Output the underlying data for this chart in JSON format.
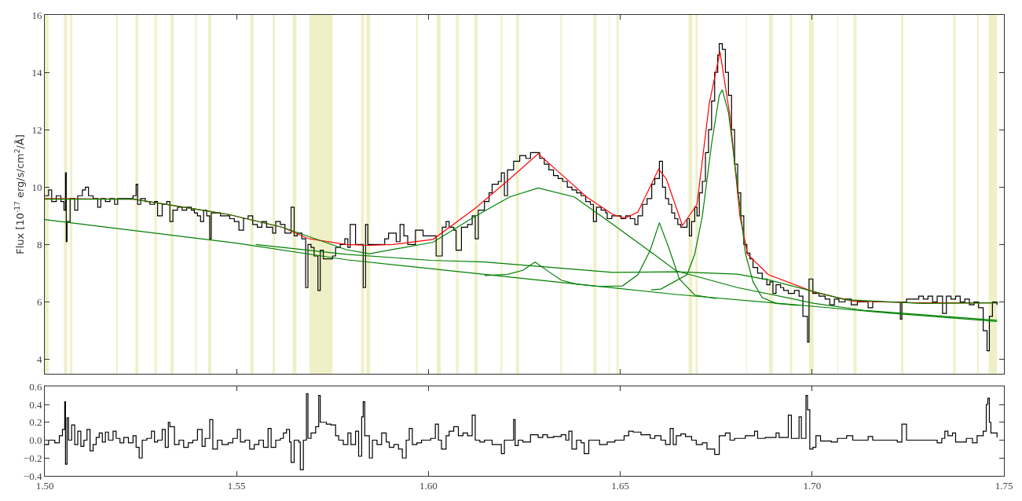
{
  "chart_data": [
    {
      "type": "line",
      "ylabel": "Flux [10$^{-17}$ erg/s/cm$^{2}$/Å]",
      "xlim": [
        1.5,
        1.75
      ],
      "xticks": [
        1.5,
        1.55,
        1.6,
        1.65,
        1.7,
        1.75
      ],
      "ylim": [
        3.5,
        16
      ],
      "yticks": [
        4,
        6,
        8,
        10,
        12,
        14,
        16
      ],
      "tick_labels": "y",
      "bands": [
        {
          "axis": "x",
          "from": 1.5,
          "to": 1.501,
          "color": "#f0f0c8"
        },
        {
          "axis": "x",
          "from": 1.505,
          "to": 1.5058,
          "color": "#f0f0c8"
        },
        {
          "axis": "x",
          "from": 1.5066,
          "to": 1.5072,
          "color": "#f0f0c8"
        },
        {
          "axis": "x",
          "from": 1.5186,
          "to": 1.519,
          "color": "#f0f0c8"
        },
        {
          "axis": "x",
          "from": 1.5236,
          "to": 1.5244,
          "color": "#f0f0c8"
        },
        {
          "axis": "x",
          "from": 1.5286,
          "to": 1.5292,
          "color": "#f0f0c8"
        },
        {
          "axis": "x",
          "from": 1.5328,
          "to": 1.5336,
          "color": "#f0f0c8"
        },
        {
          "axis": "x",
          "from": 1.5392,
          "to": 1.5396,
          "color": "#f0f0c8"
        },
        {
          "axis": "x",
          "from": 1.5426,
          "to": 1.5434,
          "color": "#f0f0c8"
        },
        {
          "axis": "x",
          "from": 1.5536,
          "to": 1.5544,
          "color": "#f0f0c8"
        },
        {
          "axis": "x",
          "from": 1.5594,
          "to": 1.56,
          "color": "#f0f0c8"
        },
        {
          "axis": "x",
          "from": 1.5646,
          "to": 1.5656,
          "color": "#f0f0c8"
        },
        {
          "axis": "x",
          "from": 1.569,
          "to": 1.575,
          "color": "#f0f0c8"
        },
        {
          "axis": "x",
          "from": 1.5824,
          "to": 1.5832,
          "color": "#f0f0c8"
        },
        {
          "axis": "x",
          "from": 1.5838,
          "to": 1.5848,
          "color": "#f0f0c8"
        },
        {
          "axis": "x",
          "from": 1.5968,
          "to": 1.5972,
          "color": "#f0f0c8"
        },
        {
          "axis": "x",
          "from": 1.6022,
          "to": 1.6032,
          "color": "#f0f0c8"
        },
        {
          "axis": "x",
          "from": 1.6072,
          "to": 1.6078,
          "color": "#f0f0c8"
        },
        {
          "axis": "x",
          "from": 1.612,
          "to": 1.6128,
          "color": "#f0f0c8"
        },
        {
          "axis": "x",
          "from": 1.6188,
          "to": 1.6192,
          "color": "#f0f0c8"
        },
        {
          "axis": "x",
          "from": 1.6228,
          "to": 1.6236,
          "color": "#f0f0c8"
        },
        {
          "axis": "x",
          "from": 1.6344,
          "to": 1.6348,
          "color": "#f0f0c8"
        },
        {
          "axis": "x",
          "from": 1.643,
          "to": 1.6438,
          "color": "#f0f0c8"
        },
        {
          "axis": "x",
          "from": 1.647,
          "to": 1.6472,
          "color": "#f0f0c8"
        },
        {
          "axis": "x",
          "from": 1.649,
          "to": 1.6496,
          "color": "#f0f0c8"
        },
        {
          "axis": "x",
          "from": 1.6678,
          "to": 1.6688,
          "color": "#f0f0c8"
        },
        {
          "axis": "x",
          "from": 1.6696,
          "to": 1.6702,
          "color": "#f0f0c8"
        },
        {
          "axis": "x",
          "from": 1.6828,
          "to": 1.683,
          "color": "#f0f0c8"
        },
        {
          "axis": "x",
          "from": 1.6888,
          "to": 1.6898,
          "color": "#f0f0c8"
        },
        {
          "axis": "x",
          "from": 1.6942,
          "to": 1.6948,
          "color": "#f0f0c8"
        },
        {
          "axis": "x",
          "from": 1.6992,
          "to": 1.7004,
          "color": "#f0f0c8"
        },
        {
          "axis": "x",
          "from": 1.7066,
          "to": 1.7068,
          "color": "#f0f0c8"
        },
        {
          "axis": "x",
          "from": 1.7108,
          "to": 1.7116,
          "color": "#f0f0c8"
        },
        {
          "axis": "x",
          "from": 1.7232,
          "to": 1.7238,
          "color": "#f0f0c8"
        },
        {
          "axis": "x",
          "from": 1.7368,
          "to": 1.7374,
          "color": "#f0f0c8"
        },
        {
          "axis": "x",
          "from": 1.743,
          "to": 1.7434,
          "color": "#f0f0c8"
        },
        {
          "axis": "x",
          "from": 1.746,
          "to": 1.7482,
          "color": "#f0f0c8"
        }
      ],
      "series": [
        {
          "type": "step",
          "color": "#000000",
          "x": [
            1.5,
            1.501,
            1.5018,
            1.503,
            1.5042,
            1.505,
            1.5054,
            1.5056,
            1.5058,
            1.5066,
            1.5078,
            1.5086,
            1.5098,
            1.5106,
            1.5114,
            1.5126,
            1.5138,
            1.5146,
            1.5158,
            1.517,
            1.5182,
            1.519,
            1.5202,
            1.5216,
            1.523,
            1.5238,
            1.5242,
            1.525,
            1.5262,
            1.5274,
            1.5286,
            1.5294,
            1.5306,
            1.5318,
            1.5326,
            1.5334,
            1.5346,
            1.5358,
            1.537,
            1.5382,
            1.539,
            1.5398,
            1.5406,
            1.5414,
            1.5422,
            1.543,
            1.5434,
            1.5446,
            1.5458,
            1.547,
            1.5482,
            1.5494,
            1.5506,
            1.5518,
            1.553,
            1.5542,
            1.5554,
            1.5566,
            1.5578,
            1.5586,
            1.5594,
            1.5602,
            1.5614,
            1.5626,
            1.5642,
            1.565,
            1.5658,
            1.567,
            1.568,
            1.5686,
            1.5694,
            1.5702,
            1.5712,
            1.5718,
            1.5726,
            1.5738,
            1.575,
            1.5758,
            1.577,
            1.5782,
            1.579,
            1.5796,
            1.581,
            1.583,
            1.5836,
            1.5842,
            1.5866,
            1.5886,
            1.5896,
            1.5916,
            1.5926,
            1.5936,
            1.5946,
            1.5966,
            1.5986,
            1.6006,
            1.602,
            1.6036,
            1.6046,
            1.6054,
            1.6066,
            1.6072,
            1.6086,
            1.6102,
            1.6114,
            1.6122,
            1.613,
            1.6146,
            1.6158,
            1.6166,
            1.6182,
            1.619,
            1.6198,
            1.6206,
            1.6222,
            1.6238,
            1.6254,
            1.6266,
            1.6278,
            1.629,
            1.6302,
            1.6314,
            1.6326,
            1.6338,
            1.635,
            1.6362,
            1.6374,
            1.6386,
            1.6398,
            1.641,
            1.6422,
            1.643,
            1.6438,
            1.645,
            1.6462,
            1.6466,
            1.6478,
            1.649,
            1.6502,
            1.6514,
            1.6526,
            1.6538,
            1.6546,
            1.6558,
            1.657,
            1.6582,
            1.659,
            1.6602,
            1.661,
            1.6618,
            1.6626,
            1.6634,
            1.6642,
            1.665,
            1.6658,
            1.667,
            1.6674,
            1.668,
            1.6686,
            1.6694,
            1.67,
            1.6706,
            1.6714,
            1.6722,
            1.673,
            1.6738,
            1.6746,
            1.6754,
            1.6758,
            1.6766,
            1.6774,
            1.6782,
            1.679,
            1.6798,
            1.6806,
            1.6814,
            1.6822,
            1.683,
            1.6838,
            1.6846,
            1.6858,
            1.687,
            1.6882,
            1.689,
            1.6898,
            1.6906,
            1.6918,
            1.6926,
            1.6938,
            1.6954,
            1.6966,
            1.6976,
            1.6988,
            1.6992,
            1.7002,
            1.7018,
            1.7034,
            1.7046,
            1.7058,
            1.707,
            1.7086,
            1.7102,
            1.7118,
            1.7134,
            1.7146,
            1.7158,
            1.7174,
            1.7206,
            1.723,
            1.7234,
            1.7246,
            1.7266,
            1.7278,
            1.729,
            1.7302,
            1.7314,
            1.7326,
            1.734,
            1.735,
            1.7362,
            1.7374,
            1.7386,
            1.7398,
            1.741,
            1.7422,
            1.7434,
            1.7446,
            1.7456,
            1.7462,
            1.747,
            1.7482
          ],
          "values": [
            9.7,
            9.9,
            9.5,
            9.7,
            9.5,
            9.2,
            10.5,
            8.1,
            8.8,
            9.6,
            9.2,
            9.7,
            9.9,
            10.0,
            9.7,
            9.6,
            9.3,
            9.6,
            9.5,
            9.6,
            9.4,
            9.6,
            9.6,
            9.6,
            9.7,
            10.1,
            9.4,
            9.6,
            9.5,
            9.4,
            9.5,
            9.0,
            9.4,
            9.5,
            8.8,
            9.2,
            9.3,
            9.2,
            9.3,
            9.2,
            9.1,
            9.0,
            8.8,
            9.2,
            9.0,
            8.2,
            9.1,
            9.1,
            9.0,
            9.0,
            8.9,
            8.8,
            8.5,
            8.9,
            9.0,
            8.7,
            8.6,
            8.8,
            8.6,
            8.6,
            8.4,
            8.8,
            8.7,
            8.4,
            9.3,
            8.3,
            8.4,
            8.2,
            6.5,
            8.0,
            7.9,
            7.6,
            6.4,
            7.8,
            7.5,
            7.5,
            7.6,
            7.9,
            8.0,
            8.2,
            7.9,
            8.7,
            8.0,
            6.5,
            8.7,
            8.0,
            8.0,
            8.2,
            8.4,
            8.1,
            8.7,
            8.3,
            8.0,
            8.5,
            8.3,
            8.3,
            7.6,
            8.6,
            8.8,
            8.6,
            8.5,
            7.8,
            8.6,
            8.7,
            9.0,
            8.2,
            9.2,
            9.5,
            9.8,
            10.1,
            10.2,
            10.5,
            9.7,
            10.6,
            10.9,
            11.1,
            11.0,
            11.2,
            11.2,
            11.0,
            10.8,
            10.6,
            10.4,
            10.3,
            10.2,
            10.0,
            9.9,
            9.8,
            9.7,
            9.5,
            9.4,
            8.8,
            9.3,
            9.2,
            9.1,
            8.9,
            9.0,
            9.0,
            8.9,
            9.0,
            8.9,
            8.7,
            9.0,
            9.4,
            9.6,
            10.1,
            10.3,
            10.9,
            10.0,
            9.6,
            9.4,
            9.1,
            8.9,
            8.7,
            8.6,
            8.6,
            8.9,
            8.3,
            8.8,
            9.3,
            9.0,
            9.8,
            10.2,
            11.2,
            12.0,
            13.0,
            14.0,
            14.6,
            15.0,
            14.8,
            14.0,
            13.2,
            12.0,
            10.8,
            9.8,
            9.0,
            8.0,
            7.7,
            7.5,
            7.2,
            7.0,
            6.8,
            6.6,
            6.7,
            6.3,
            6.6,
            6.5,
            6.4,
            6.3,
            6.4,
            6.2,
            5.5,
            4.6,
            6.8,
            6.3,
            6.2,
            6.1,
            5.9,
            6.1,
            6.0,
            6.1,
            5.9,
            6.0,
            6.0,
            5.8,
            6.0,
            6.0,
            6.0,
            5.4,
            6.0,
            6.1,
            6.1,
            6.2,
            6.1,
            6.2,
            6.0,
            6.2,
            5.6,
            6.2,
            6.1,
            6.2,
            6.0,
            6.1,
            5.9,
            6.0,
            5.8,
            5.0,
            4.3,
            5.5,
            6.0,
            5.9
          ]
        },
        {
          "color": "#ff0000",
          "x": [
            1.5,
            1.5232,
            1.5478,
            1.562,
            1.5686,
            1.5786,
            1.5846,
            1.5906,
            1.6012,
            1.612,
            1.6212,
            1.6286,
            1.6346,
            1.6412,
            1.648,
            1.6512,
            1.6546,
            1.66,
            1.662,
            1.6662,
            1.67,
            1.6732,
            1.676,
            1.6786,
            1.6812,
            1.6832,
            1.6886,
            1.7006,
            1.7106,
            1.7272,
            1.748
          ],
          "values": [
            9.6,
            9.58,
            9.05,
            8.6,
            8.21,
            8.0,
            7.97,
            8.0,
            8.18,
            9.24,
            10.29,
            11.16,
            10.45,
            9.66,
            9.05,
            8.92,
            9.13,
            10.63,
            10.29,
            8.66,
            9.4,
            12.92,
            14.71,
            12.47,
            8.97,
            7.66,
            6.95,
            6.34,
            6.03,
            5.97,
            5.97
          ]
        },
        {
          "color": "#008000",
          "x": [
            1.5,
            1.55,
            1.5786,
            1.6286,
            1.6646,
            1.7,
            1.7186,
            1.7482
          ],
          "values": [
            8.87,
            8.05,
            7.47,
            6.76,
            6.26,
            5.85,
            5.63,
            5.32
          ]
        },
        {
          "color": "#008000",
          "x": [
            1.5,
            1.5232,
            1.5478,
            1.562,
            1.5786,
            1.5846,
            1.6012,
            1.612,
            1.6212,
            1.6286,
            1.638,
            1.648,
            1.658,
            1.6646,
            1.6806,
            1.7006,
            1.714,
            1.7482
          ],
          "values": [
            9.58,
            9.58,
            9.05,
            8.6,
            7.82,
            7.68,
            8.08,
            8.97,
            9.66,
            9.97,
            9.66,
            8.71,
            7.74,
            7.08,
            6.5,
            5.95,
            5.7,
            5.36
          ]
        },
        {
          "color": "#008000",
          "x": [
            1.555,
            1.5786,
            1.6006,
            1.6146,
            1.6386,
            1.648,
            1.6646,
            1.6806,
            1.6886,
            1.7086,
            1.7286,
            1.7482
          ],
          "values": [
            8.0,
            7.66,
            7.45,
            7.39,
            7.13,
            7.03,
            7.05,
            6.97,
            6.77,
            6.08,
            5.95,
            5.97
          ]
        },
        {
          "color": "#008000",
          "x": [
            1.6146,
            1.6206,
            1.6246,
            1.6278,
            1.6314,
            1.6346,
            1.6386,
            1.6446,
            1.6506,
            1.6546,
            1.6578,
            1.6602,
            1.6626,
            1.6654,
            1.6694,
            1.675
          ],
          "values": [
            6.92,
            6.96,
            7.1,
            7.39,
            7.05,
            6.76,
            6.62,
            6.54,
            6.56,
            6.95,
            7.8,
            8.76,
            7.9,
            6.8,
            6.24,
            6.12
          ]
        },
        {
          "color": "#008000",
          "x": [
            1.658,
            1.6606,
            1.6674,
            1.6694,
            1.6714,
            1.6738,
            1.6758,
            1.6766,
            1.6782,
            1.6806,
            1.6826,
            1.6846,
            1.687,
            1.6906,
            1.6966
          ],
          "values": [
            6.42,
            6.45,
            6.95,
            7.66,
            9.0,
            11.5,
            13.2,
            13.39,
            12.6,
            10.0,
            7.7,
            6.7,
            6.15,
            5.95,
            5.88
          ]
        }
      ]
    },
    {
      "type": "step",
      "xlim": [
        1.5,
        1.75
      ],
      "xticks": [
        {
          "value": 1.5,
          "label": "1.50"
        },
        {
          "value": 1.55,
          "label": "1.55"
        },
        {
          "value": 1.6,
          "label": "1.60"
        },
        {
          "value": 1.65,
          "label": "1.65"
        },
        {
          "value": 1.7,
          "label": "1.70"
        },
        {
          "value": 1.75,
          "label": "1.75"
        }
      ],
      "ylim": [
        -0.4,
        0.6
      ],
      "yticks": [
        {
          "value": -0.4,
          "label": "−0.4"
        },
        {
          "value": -0.2,
          "label": "−0.2"
        },
        {
          "value": 0,
          "label": "0.0"
        },
        {
          "value": 0.2,
          "label": "0.2"
        },
        {
          "value": 0.4,
          "label": "0.4"
        },
        {
          "value": 0.6,
          "label": "0.6"
        }
      ],
      "series": [
        {
          "color": "#000000",
          "x": [
            1.5,
            1.501,
            1.5026,
            1.5038,
            1.5046,
            1.5052,
            1.5054,
            1.5058,
            1.5062,
            1.507,
            1.5078,
            1.5086,
            1.5094,
            1.5102,
            1.511,
            1.5118,
            1.5126,
            1.5134,
            1.5142,
            1.515,
            1.5158,
            1.5166,
            1.5178,
            1.5186,
            1.5196,
            1.5206,
            1.5218,
            1.523,
            1.5238,
            1.5246,
            1.5254,
            1.5266,
            1.5278,
            1.5286,
            1.5294,
            1.5306,
            1.5314,
            1.5322,
            1.5326,
            1.5338,
            1.535,
            1.5362,
            1.5374,
            1.5386,
            1.5398,
            1.541,
            1.5418,
            1.543,
            1.5438,
            1.545,
            1.5462,
            1.5478,
            1.549,
            1.5502,
            1.551,
            1.5522,
            1.5534,
            1.5546,
            1.5558,
            1.557,
            1.5582,
            1.559,
            1.5602,
            1.5614,
            1.5622,
            1.563,
            1.5638,
            1.5642,
            1.565,
            1.5662,
            1.5666,
            1.5674,
            1.5682,
            1.5686,
            1.5694,
            1.5706,
            1.5714,
            1.5718,
            1.5734,
            1.5746,
            1.5758,
            1.5766,
            1.5778,
            1.579,
            1.5798,
            1.581,
            1.5818,
            1.5826,
            1.583,
            1.5834,
            1.5846,
            1.5854,
            1.5866,
            1.5878,
            1.589,
            1.5898,
            1.591,
            1.5922,
            1.5932,
            1.5942,
            1.595,
            1.5958,
            1.597,
            1.5982,
            1.6006,
            1.6018,
            1.6026,
            1.6034,
            1.6046,
            1.6054,
            1.6066,
            1.6078,
            1.609,
            1.6102,
            1.6114,
            1.6122,
            1.6134,
            1.6146,
            1.6166,
            1.619,
            1.6198,
            1.6214,
            1.6222,
            1.6226,
            1.6234,
            1.6246,
            1.6266,
            1.6286,
            1.6298,
            1.631,
            1.6326,
            1.6346,
            1.6358,
            1.6366,
            1.6374,
            1.6386,
            1.6398,
            1.6406,
            1.6418,
            1.6446,
            1.6466,
            1.6486,
            1.651,
            1.6522,
            1.6534,
            1.6554,
            1.6578,
            1.659,
            1.6606,
            1.6618,
            1.663,
            1.6638,
            1.6646,
            1.6658,
            1.667,
            1.6686,
            1.6698,
            1.6714,
            1.6726,
            1.6746,
            1.6758,
            1.6774,
            1.6786,
            1.6798,
            1.6826,
            1.685,
            1.6858,
            1.6878,
            1.6906,
            1.6914,
            1.6938,
            1.6946,
            1.6966,
            1.6972,
            1.6984,
            1.6988,
            1.6994,
            1.7002,
            1.701,
            1.7022,
            1.705,
            1.7066,
            1.709,
            1.7106,
            1.7146,
            1.7158,
            1.7198,
            1.7222,
            1.7234,
            1.7246,
            1.7286,
            1.7326,
            1.7338,
            1.7346,
            1.7354,
            1.7366,
            1.7374,
            1.7402,
            1.7418,
            1.743,
            1.7446,
            1.7454,
            1.7458,
            1.7462,
            1.7466,
            1.7482
          ],
          "values": [
            -0.05,
            0.0,
            -0.03,
            0.05,
            0.12,
            0.43,
            -0.27,
            0.25,
            0.0,
            0.17,
            -0.05,
            0.1,
            -0.07,
            0.0,
            0.12,
            -0.12,
            -0.05,
            0.03,
            0.08,
            -0.02,
            0.09,
            0.0,
            0.1,
            0.02,
            -0.03,
            0.03,
            -0.03,
            0.05,
            -0.08,
            -0.2,
            0.0,
            0.02,
            0.1,
            -0.02,
            0.0,
            0.12,
            -0.08,
            0.2,
            0.15,
            -0.05,
            0.0,
            -0.08,
            -0.03,
            0.0,
            0.12,
            -0.07,
            0.02,
            0.23,
            -0.1,
            0.0,
            -0.05,
            -0.03,
            0.02,
            0.12,
            -0.02,
            0.0,
            -0.1,
            -0.05,
            0.0,
            -0.08,
            0.13,
            -0.08,
            0.0,
            0.02,
            0.08,
            0.12,
            -0.02,
            -0.25,
            0.0,
            -0.02,
            -0.33,
            0.0,
            0.52,
            0.02,
            0.08,
            0.15,
            0.5,
            0.2,
            0.18,
            0.17,
            0.05,
            0.0,
            -0.05,
            0.08,
            -0.05,
            0.1,
            -0.18,
            0.26,
            0.43,
            0.05,
            -0.2,
            0.0,
            -0.05,
            0.08,
            -0.02,
            -0.08,
            -0.05,
            -0.1,
            -0.2,
            0.0,
            0.13,
            -0.05,
            -0.03,
            0.0,
            0.02,
            0.18,
            0.0,
            -0.1,
            0.05,
            0.1,
            0.15,
            0.05,
            0.08,
            0.05,
            0.28,
            0.0,
            -0.02,
            0.0,
            -0.05,
            -0.15,
            0.0,
            0.0,
            0.23,
            -0.06,
            0.0,
            -0.02,
            0.06,
            0.03,
            0.06,
            0.03,
            0.04,
            0.06,
            0.0,
            0.1,
            -0.1,
            0.0,
            -0.03,
            -0.15,
            0.0,
            -0.05,
            -0.02,
            0.0,
            0.05,
            0.1,
            0.09,
            0.06,
            0.02,
            0.05,
            0.0,
            -0.05,
            0.13,
            -0.05,
            0.05,
            0.07,
            0.04,
            0.0,
            -0.05,
            -0.03,
            -0.1,
            -0.16,
            0.05,
            0.08,
            0.0,
            0.02,
            0.05,
            0.1,
            0.02,
            0.03,
            0.08,
            0.03,
            0.28,
            0.02,
            0.26,
            0.02,
            0.5,
            0.34,
            -0.1,
            -0.08,
            0.05,
            -0.01,
            -0.02,
            0.02,
            0.05,
            0.0,
            0.04,
            0.0,
            0.0,
            -0.02,
            0.18,
            0.0,
            0.0,
            -0.03,
            0.02,
            0.1,
            0.05,
            0.08,
            -0.02,
            0.02,
            -0.03,
            0.05,
            0.1,
            0.4,
            0.47,
            0.2,
            0.08,
            0.03
          ]
        }
      ]
    }
  ]
}
